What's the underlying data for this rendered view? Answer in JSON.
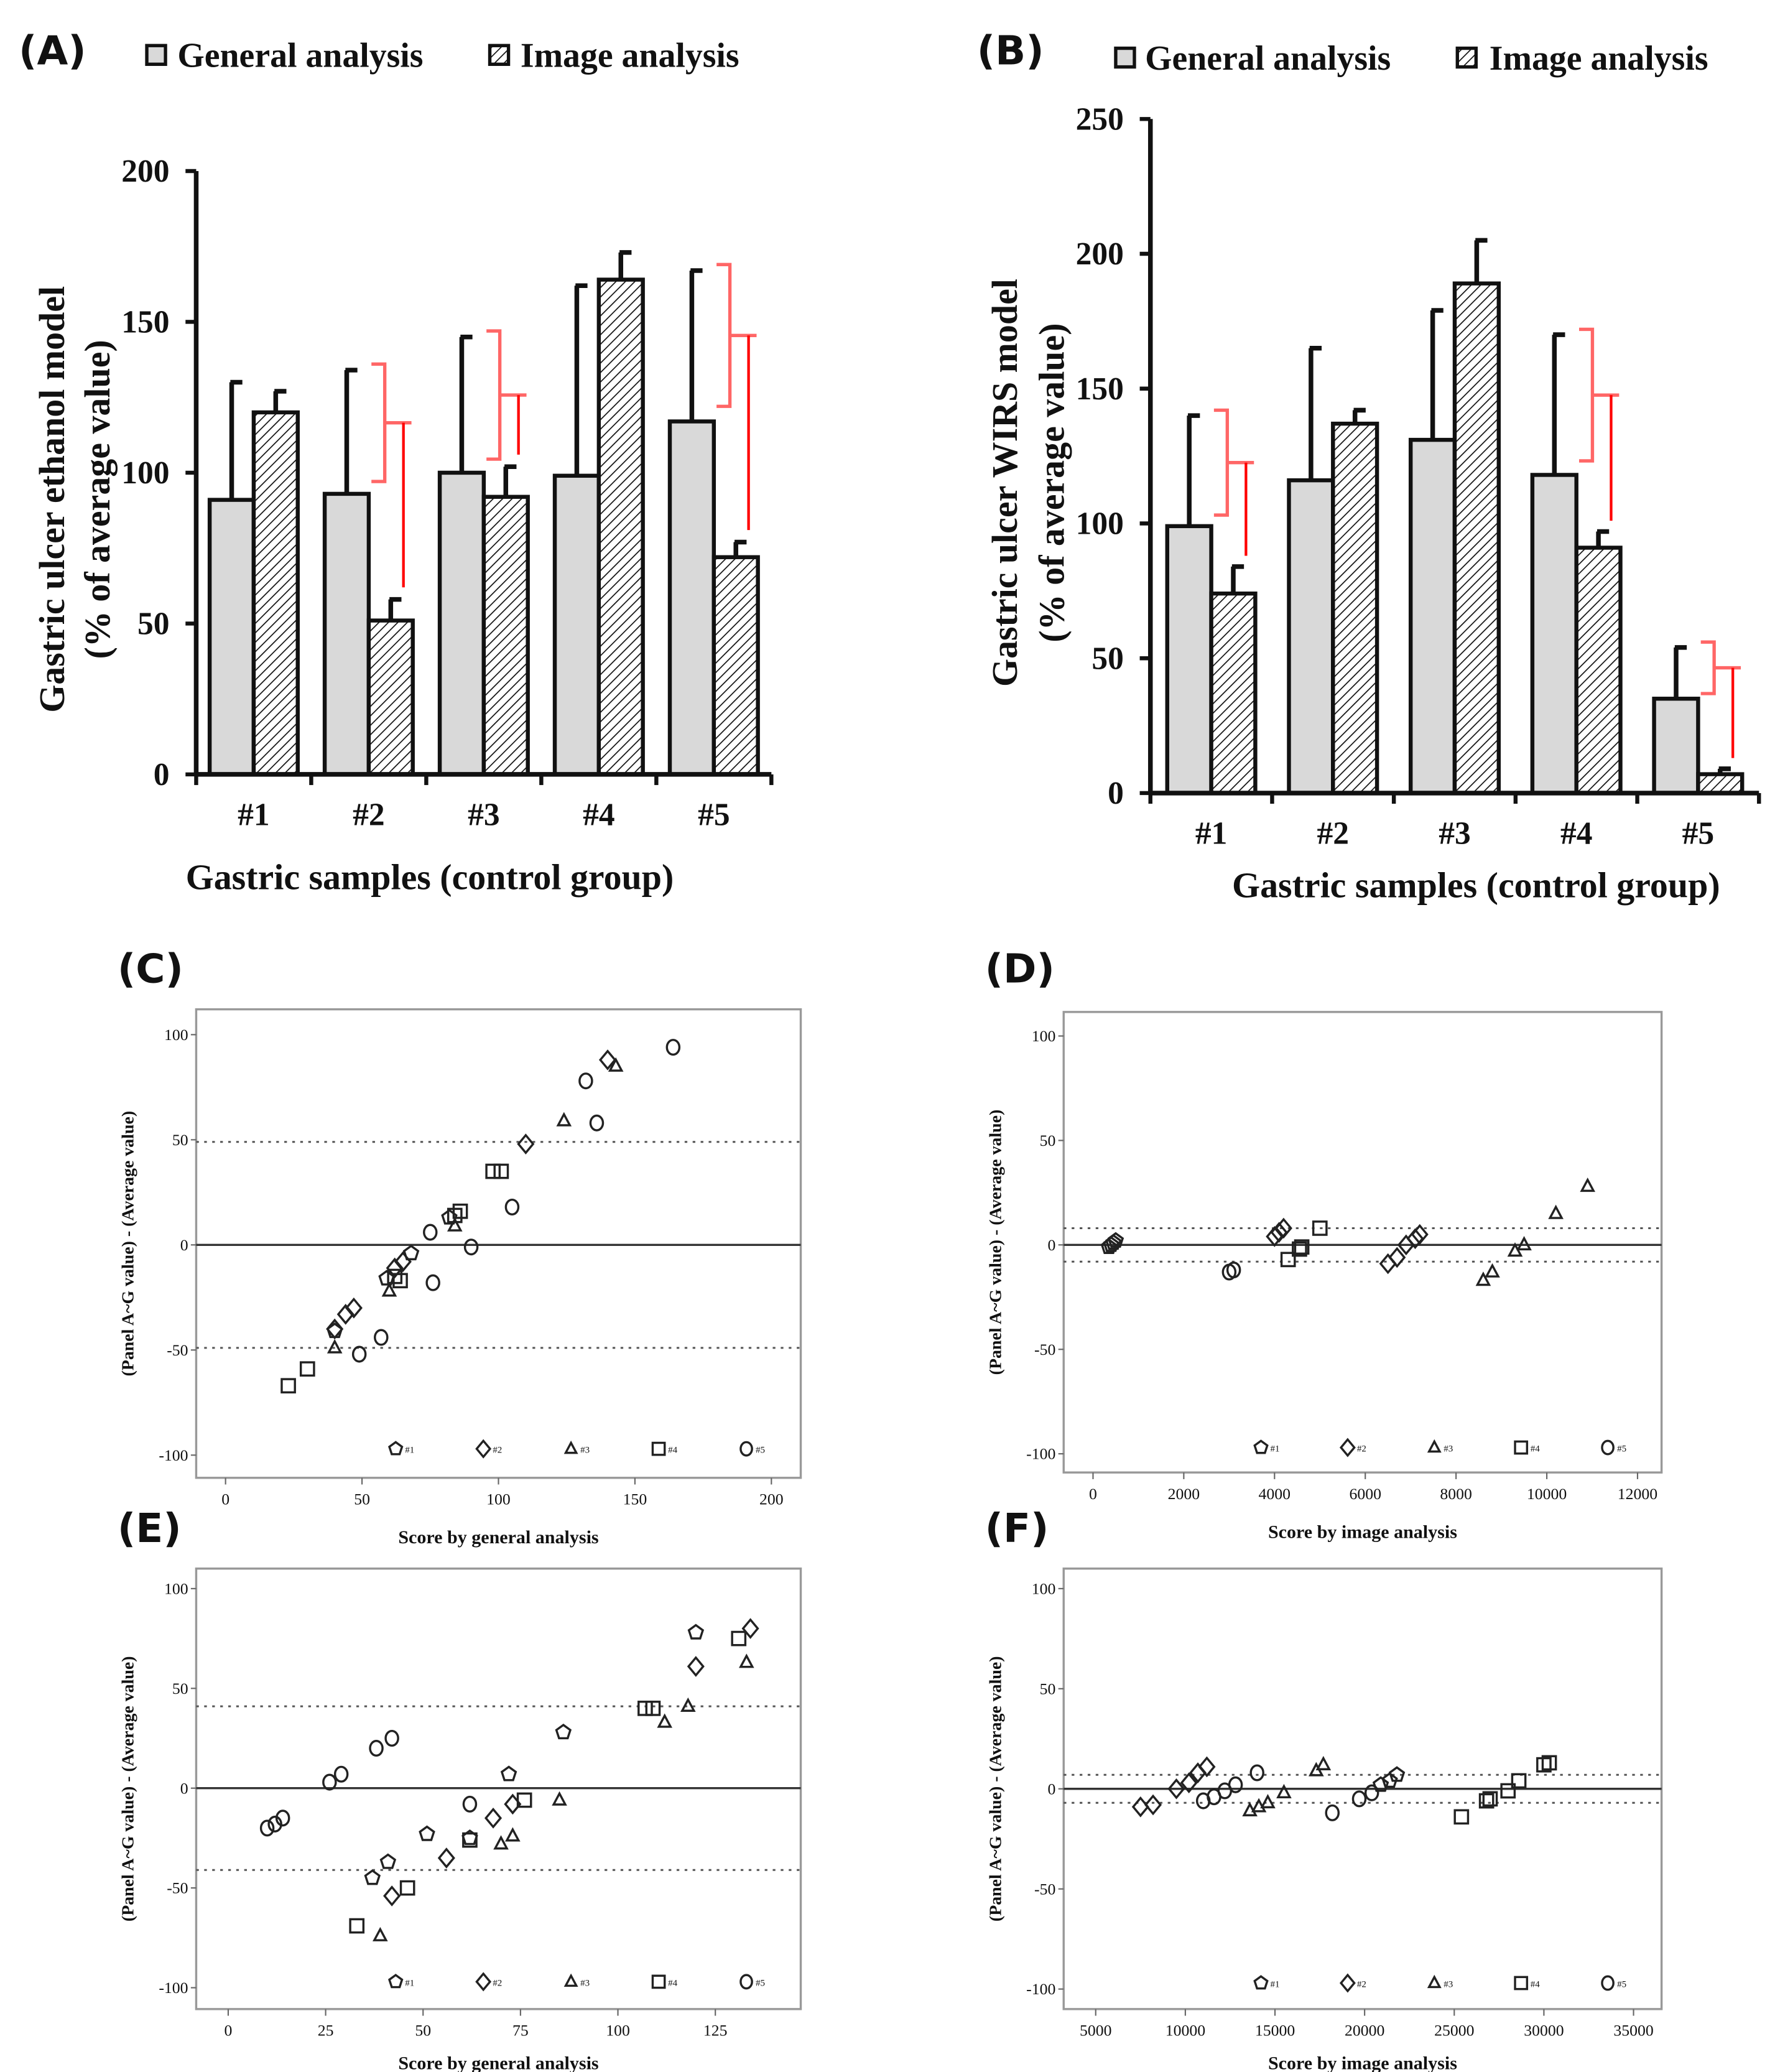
{
  "panels": {
    "A": {
      "letter": "(A)"
    },
    "B": {
      "letter": "(B)"
    },
    "C": {
      "letter": "(C)"
    },
    "D": {
      "letter": "(D)"
    },
    "E": {
      "letter": "(E)"
    },
    "F": {
      "letter": "(F)"
    }
  },
  "chart_data": [
    {
      "id": "A",
      "type": "bar",
      "legend": [
        "General analysis",
        "Image analysis"
      ],
      "ylabel": [
        "Gastric ulcer ethanol model",
        "(% of average value)"
      ],
      "xlabel": "Gastric samples (control group)",
      "categories": [
        "#1",
        "#2",
        "#3",
        "#4",
        "#5"
      ],
      "ylim": [
        0,
        200
      ],
      "yticks": [
        0,
        50,
        100,
        150,
        200
      ],
      "series": [
        {
          "name": "General analysis",
          "values": [
            91,
            93,
            100,
            99,
            117
          ],
          "error_top": [
            130,
            134,
            145,
            162,
            167
          ]
        },
        {
          "name": "Image analysis",
          "values": [
            120,
            51,
            92,
            164,
            72
          ],
          "error_top": [
            127,
            58,
            102,
            173,
            77
          ]
        }
      ],
      "significant_samples": [
        "#2",
        "#3",
        "#5"
      ],
      "annotation_color": "#ff0000"
    },
    {
      "id": "B",
      "type": "bar",
      "legend": [
        "General analysis",
        "Image analysis"
      ],
      "ylabel": [
        "Gastric ulcer WIRS model",
        "(% of average value)"
      ],
      "xlabel": "Gastric samples (control group)",
      "categories": [
        "#1",
        "#2",
        "#3",
        "#4",
        "#5"
      ],
      "ylim": [
        0,
        250
      ],
      "yticks": [
        0,
        50,
        100,
        150,
        200,
        250
      ],
      "series": [
        {
          "name": "General analysis",
          "values": [
            99,
            116,
            131,
            118,
            35
          ],
          "error_top": [
            140,
            165,
            179,
            170,
            54
          ]
        },
        {
          "name": "Image analysis",
          "values": [
            74,
            137,
            189,
            91,
            7
          ],
          "error_top": [
            84,
            142,
            205,
            97,
            9
          ]
        }
      ],
      "significant_samples": [
        "#1",
        "#4",
        "#5"
      ],
      "annotation_color": "#ff0000"
    },
    {
      "id": "C",
      "type": "scatter",
      "xlabel": "Score by general analysis",
      "ylabel": "(Panel A~G value) - (Average value)",
      "xlim": [
        0,
        200
      ],
      "xticks": [
        0,
        50,
        100,
        150,
        200
      ],
      "ylim": [
        -100,
        100
      ],
      "yticks": [
        100,
        50,
        0,
        -50,
        -100
      ],
      "limits_of_agreement": [
        49,
        -49
      ],
      "series": [
        {
          "name": "#1",
          "marker": "pentagon",
          "points": [
            [
              40,
              -41
            ],
            [
              59,
              -16
            ],
            [
              82,
              13
            ],
            [
              68,
              -4
            ]
          ]
        },
        {
          "name": "#2",
          "marker": "diamond",
          "points": [
            [
              140,
              88
            ],
            [
              110,
              48
            ],
            [
              47,
              -30
            ],
            [
              44,
              -33
            ],
            [
              65,
              -8
            ],
            [
              62,
              -11
            ],
            [
              40,
              -40
            ]
          ]
        },
        {
          "name": "#3",
          "marker": "triangle",
          "points": [
            [
              143,
              85
            ],
            [
              124,
              59
            ],
            [
              84,
              9
            ],
            [
              40,
              -49
            ],
            [
              60,
              -22
            ]
          ]
        },
        {
          "name": "#4",
          "marker": "square",
          "points": [
            [
              98,
              35
            ],
            [
              101,
              35
            ],
            [
              86,
              16
            ],
            [
              84,
              14
            ],
            [
              30,
              -59
            ],
            [
              23,
              -67
            ],
            [
              62,
              -15
            ],
            [
              64,
              -17
            ]
          ]
        },
        {
          "name": "#5",
          "marker": "circle",
          "points": [
            [
              164,
              94
            ],
            [
              132,
              78
            ],
            [
              136,
              58
            ],
            [
              105,
              18
            ],
            [
              90,
              -1
            ],
            [
              76,
              -18
            ],
            [
              75,
              6
            ],
            [
              57,
              -44
            ],
            [
              49,
              -52
            ]
          ]
        }
      ]
    },
    {
      "id": "D",
      "type": "scatter",
      "xlabel": "Score by image analysis",
      "ylabel": "(Panel A~G value) - (Average value)",
      "xlim": [
        0,
        12000
      ],
      "xticks": [
        0,
        2000,
        4000,
        6000,
        8000,
        10000,
        12000
      ],
      "ylim": [
        -100,
        100
      ],
      "yticks": [
        100,
        50,
        0,
        -50,
        -100
      ],
      "limits_of_agreement": [
        8,
        -8
      ],
      "series": [
        {
          "name": "#1",
          "marker": "pentagon",
          "points": [
            [
              350,
              -1
            ],
            [
              400,
              0
            ],
            [
              450,
              1
            ],
            [
              500,
              2
            ]
          ]
        },
        {
          "name": "#2",
          "marker": "diamond",
          "points": [
            [
              4000,
              4
            ],
            [
              4100,
              6
            ],
            [
              4200,
              8
            ],
            [
              6500,
              -9
            ],
            [
              6700,
              -6
            ],
            [
              6900,
              0
            ],
            [
              7100,
              3
            ],
            [
              7200,
              5
            ]
          ]
        },
        {
          "name": "#3",
          "marker": "triangle",
          "points": [
            [
              8600,
              -17
            ],
            [
              8800,
              -13
            ],
            [
              9300,
              -3
            ],
            [
              9500,
              0
            ],
            [
              10200,
              15
            ],
            [
              10900,
              28
            ]
          ]
        },
        {
          "name": "#4",
          "marker": "square",
          "points": [
            [
              4300,
              -7
            ],
            [
              4550,
              -2
            ],
            [
              4600,
              -1
            ],
            [
              5000,
              8
            ]
          ]
        },
        {
          "name": "#5",
          "marker": "circle",
          "points": [
            [
              3000,
              -13
            ],
            [
              3100,
              -12
            ]
          ]
        }
      ]
    },
    {
      "id": "E",
      "type": "scatter",
      "xlabel": "Score by general analysis",
      "ylabel": "(Panel A~G value) - (Average value)",
      "xlim": [
        0,
        125
      ],
      "xticks": [
        0,
        25,
        50,
        75,
        100,
        125
      ],
      "ylim": [
        -100,
        100
      ],
      "yticks": [
        100,
        50,
        0,
        -50,
        -100
      ],
      "limits_of_agreement": [
        41,
        -41
      ],
      "series": [
        {
          "name": "#1",
          "marker": "pentagon",
          "points": [
            [
              120,
              78
            ],
            [
              86,
              28
            ],
            [
              72,
              7
            ],
            [
              51,
              -23
            ],
            [
              37,
              -45
            ],
            [
              41,
              -37
            ],
            [
              62,
              -25
            ]
          ]
        },
        {
          "name": "#2",
          "marker": "diamond",
          "points": [
            [
              134,
              80
            ],
            [
              120,
              61
            ],
            [
              56,
              -35
            ],
            [
              42,
              -54
            ],
            [
              68,
              -15
            ],
            [
              73,
              -8
            ]
          ]
        },
        {
          "name": "#3",
          "marker": "triangle",
          "points": [
            [
              133,
              63
            ],
            [
              118,
              41
            ],
            [
              112,
              33
            ],
            [
              85,
              -6
            ],
            [
              73,
              -24
            ],
            [
              70,
              -28
            ],
            [
              39,
              -74
            ]
          ]
        },
        {
          "name": "#4",
          "marker": "square",
          "points": [
            [
              131,
              75
            ],
            [
              107,
              40
            ],
            [
              109,
              40
            ],
            [
              76,
              -6
            ],
            [
              46,
              -50
            ],
            [
              33,
              -69
            ],
            [
              62,
              -26
            ]
          ]
        },
        {
          "name": "#5",
          "marker": "circle",
          "points": [
            [
              10,
              -20
            ],
            [
              12,
              -18
            ],
            [
              14,
              -15
            ],
            [
              26,
              3
            ],
            [
              29,
              7
            ],
            [
              38,
              20
            ],
            [
              42,
              25
            ],
            [
              62,
              -8
            ]
          ]
        }
      ]
    },
    {
      "id": "F",
      "type": "scatter",
      "xlabel": "Score by image analysis",
      "ylabel": "(Panel A~G value) - (Average value)",
      "xlim": [
        5000,
        35000
      ],
      "xticks": [
        5000,
        10000,
        15000,
        20000,
        25000,
        30000,
        35000
      ],
      "ylim": [
        -100,
        100
      ],
      "yticks": [
        100,
        50,
        0,
        -50,
        -100
      ],
      "limits_of_agreement": [
        7,
        -7
      ],
      "series": [
        {
          "name": "#1",
          "marker": "pentagon",
          "points": [
            [
              20900,
              2
            ],
            [
              21400,
              4
            ],
            [
              21800,
              7
            ]
          ]
        },
        {
          "name": "#2",
          "marker": "diamond",
          "points": [
            [
              7500,
              -9
            ],
            [
              8200,
              -8
            ],
            [
              9500,
              0
            ],
            [
              10200,
              3
            ],
            [
              10700,
              8
            ],
            [
              11200,
              11
            ]
          ]
        },
        {
          "name": "#3",
          "marker": "triangle",
          "points": [
            [
              13600,
              -11
            ],
            [
              14100,
              -9
            ],
            [
              14600,
              -7
            ],
            [
              15500,
              -2
            ],
            [
              17300,
              9
            ],
            [
              17700,
              12
            ]
          ]
        },
        {
          "name": "#4",
          "marker": "square",
          "points": [
            [
              25400,
              -14
            ],
            [
              26800,
              -6
            ],
            [
              27000,
              -5
            ],
            [
              28000,
              -1
            ],
            [
              28600,
              4
            ],
            [
              30000,
              12
            ],
            [
              30300,
              13
            ]
          ]
        },
        {
          "name": "#5",
          "marker": "circle",
          "points": [
            [
              11000,
              -6
            ],
            [
              11600,
              -4
            ],
            [
              12200,
              -1
            ],
            [
              12800,
              2
            ],
            [
              14000,
              8
            ],
            [
              18200,
              -12
            ],
            [
              19700,
              -5
            ],
            [
              20400,
              -2
            ]
          ]
        }
      ]
    }
  ]
}
